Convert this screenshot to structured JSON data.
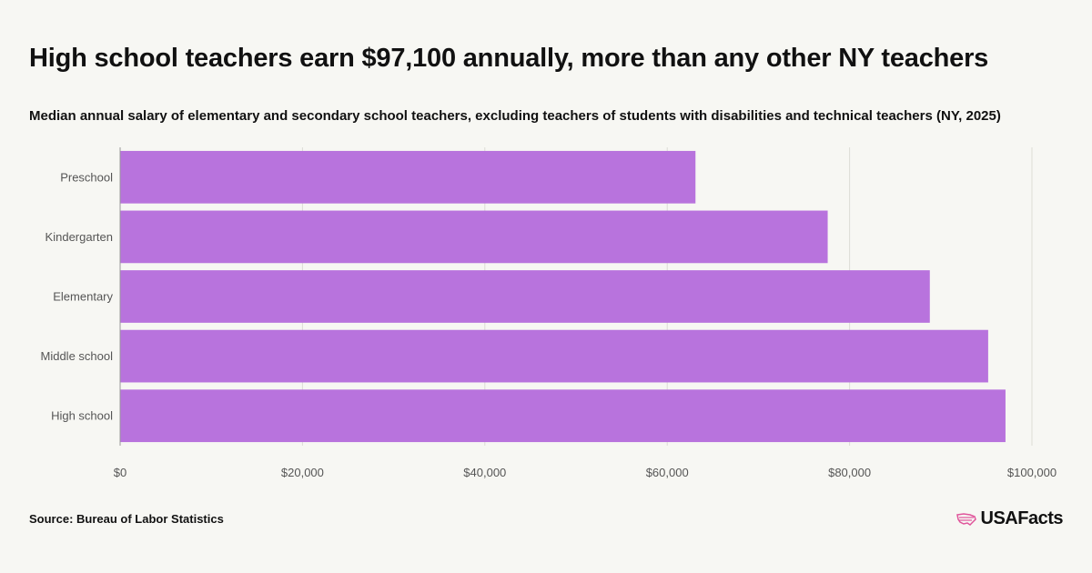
{
  "header": {
    "title": "High school teachers earn $97,100 annually, more than any other NY teachers",
    "subtitle": "Median annual salary of elementary and secondary school teachers, excluding teachers of students with disabilities and technical teachers (NY, 2025)"
  },
  "footer": {
    "source": "Source: Bureau of Labor Statistics",
    "logo_text": "USAFacts",
    "logo_accent_color": "#e0559b"
  },
  "chart_data": {
    "type": "bar",
    "orientation": "horizontal",
    "categories": [
      "Preschool",
      "Kindergarten",
      "Elementary",
      "Middle school",
      "High school"
    ],
    "values": [
      63100,
      77600,
      88800,
      95200,
      97100
    ],
    "xlim": [
      0,
      100000
    ],
    "xticks": [
      0,
      20000,
      40000,
      60000,
      80000,
      100000
    ],
    "xtick_labels": [
      "$0",
      "$20,000",
      "$40,000",
      "$60,000",
      "$80,000",
      "$100,000"
    ],
    "bar_color": "#b873dd",
    "grid": true,
    "title": "High school teachers earn $97,100 annually, more than any other NY teachers",
    "xlabel": "",
    "ylabel": ""
  }
}
